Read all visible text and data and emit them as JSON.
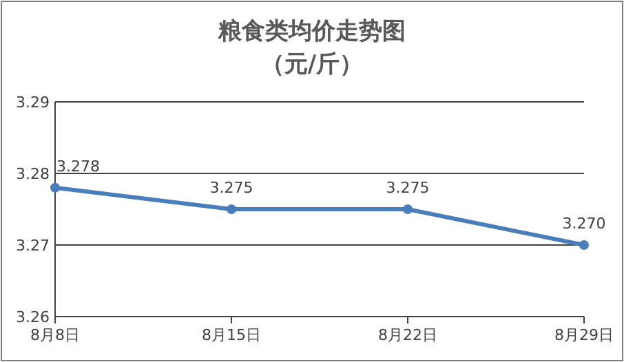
{
  "chart_data": {
    "type": "line",
    "title": "粮食类均价走势图",
    "subtitle": "（元/斤）",
    "categories": [
      "8月8日",
      "8月15日",
      "8月22日",
      "8月29日"
    ],
    "series": [
      {
        "color": "#4a7ebb",
        "values": [
          3.278,
          3.275,
          3.275,
          3.27
        ],
        "value_labels": [
          "3.278",
          "3.275",
          "3.275",
          "3.270"
        ]
      }
    ],
    "ylim": [
      3.26,
      3.29
    ],
    "yticks": [
      {
        "value": 3.26,
        "label": "3.26"
      },
      {
        "value": 3.27,
        "label": "3.27"
      },
      {
        "value": 3.28,
        "label": "3.28"
      },
      {
        "value": 3.29,
        "label": "3.29"
      }
    ],
    "grid": "y",
    "marker": "circle",
    "line_style": "solid"
  }
}
